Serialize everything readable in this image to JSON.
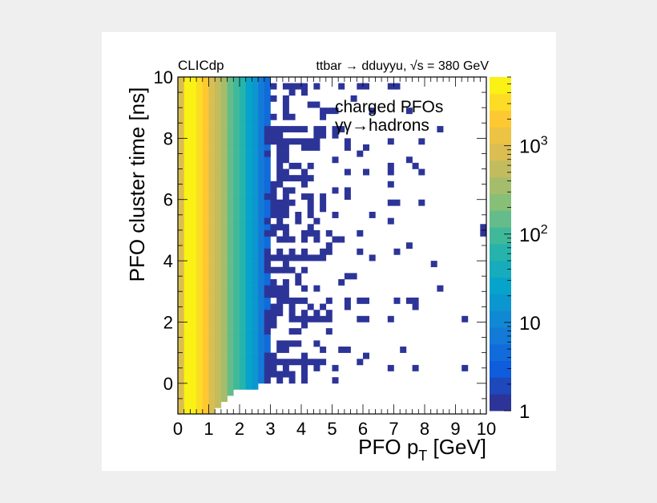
{
  "chart_data": {
    "type": "heatmap",
    "experiment_label": "CLICdp",
    "title": "ttbar → dduyyu, √s = 380 GeV",
    "legend": [
      "charged PFOs",
      "γγ→hadrons"
    ],
    "xlabel": {
      "main": "PFO p",
      "sub": "T",
      "unit": " [GeV]"
    },
    "ylabel": "PFO cluster time [ns]",
    "xlim": [
      0,
      10
    ],
    "ylim": [
      -1,
      10
    ],
    "x_bin_width": 0.2,
    "y_bin_width": 0.2,
    "x_ticks": [
      "0",
      "1",
      "2",
      "3",
      "4",
      "5",
      "6",
      "7",
      "8",
      "9",
      "10"
    ],
    "y_ticks": [
      "0",
      "2",
      "4",
      "6",
      "8",
      "10"
    ],
    "z_scale": "log",
    "zlim": [
      1,
      6000
    ],
    "z_ticks": [
      {
        "base": "1",
        "exp": ""
      },
      {
        "base": "10",
        "exp": ""
      },
      {
        "base": "10",
        "exp": "2"
      },
      {
        "base": "10",
        "exp": "3"
      }
    ],
    "palette": [
      "#352a87",
      "#0f5cdd",
      "#1481d6",
      "#06a4ca",
      "#2eb7a4",
      "#87bf77",
      "#d1bb59",
      "#fec832",
      "#f9fb0e"
    ],
    "dense_region": {
      "x_bin_low": [
        0,
        0.2,
        0.4,
        0.6,
        0.8,
        1.0,
        1.2,
        1.4,
        1.6,
        1.8,
        2.0,
        2.2,
        2.4,
        2.6,
        2.8
      ],
      "counts_per_bin": [
        800,
        5000,
        4500,
        3000,
        1800,
        900,
        500,
        300,
        170,
        100,
        55,
        30,
        15,
        8,
        4
      ],
      "min_time": [
        -1,
        -1,
        -1,
        -1,
        -1,
        -1,
        -0.8,
        -0.6,
        -0.4,
        -0.2,
        -0.2,
        -0.2,
        -0.2,
        0,
        0
      ]
    },
    "sparse_bins": [
      {
        "t": 9.6,
        "x": [
          3.0,
          3.4,
          3.6,
          3.8,
          4.0,
          4.4,
          5.2,
          5.8,
          6.0,
          6.8,
          7.0
        ]
      },
      {
        "t": 9.4,
        "x": [
          3.6,
          4.0
        ]
      },
      {
        "t": 9.2,
        "x": [
          3.0,
          3.4,
          5.6
        ]
      },
      {
        "t": 9.0,
        "x": [
          3.4,
          4.2,
          4.4
        ]
      },
      {
        "t": 8.8,
        "x": [
          3.4,
          4.6,
          4.8,
          5.0,
          6.2,
          7.4
        ]
      },
      {
        "t": 8.6,
        "x": [
          3.0,
          3.4,
          3.6,
          4.6
        ]
      },
      {
        "t": 8.2,
        "x": [
          2.8,
          3.0,
          3.2,
          3.4,
          3.6,
          3.8,
          4.0,
          4.4,
          4.6,
          5.0,
          5.2,
          8.4
        ]
      },
      {
        "t": 8.0,
        "x": [
          2.8,
          3.0,
          3.2,
          4.4,
          4.6,
          5.0
        ]
      },
      {
        "t": 7.8,
        "x": [
          2.8,
          3.0,
          3.2,
          3.4,
          3.6,
          3.8,
          4.0,
          4.2,
          4.4,
          5.4,
          6.8,
          7.8
        ]
      },
      {
        "t": 7.6,
        "x": [
          3.2,
          3.4,
          4.0,
          4.2,
          4.4,
          5.4,
          6.0
        ]
      },
      {
        "t": 7.4,
        "x": [
          2.8,
          3.2,
          3.4,
          5.8
        ]
      },
      {
        "t": 7.2,
        "x": [
          3.2,
          3.4,
          5.0,
          7.4
        ]
      },
      {
        "t": 7.0,
        "x": [
          3.2,
          3.6,
          3.8,
          4.2,
          6.8,
          7.6
        ]
      },
      {
        "t": 6.8,
        "x": [
          3.2,
          3.4,
          4.0,
          5.4,
          6.0,
          6.8,
          7.8
        ]
      },
      {
        "t": 6.6,
        "x": [
          3.2,
          3.4,
          3.6,
          3.8,
          4.0,
          4.2
        ]
      },
      {
        "t": 6.4,
        "x": [
          3.0,
          3.2,
          4.0,
          6.8
        ]
      },
      {
        "t": 6.2,
        "x": [
          3.0,
          3.4,
          3.6,
          5.0,
          5.4
        ]
      },
      {
        "t": 6.0,
        "x": [
          2.8,
          3.0,
          3.4,
          4.0,
          4.2,
          4.6,
          5.4
        ]
      },
      {
        "t": 5.8,
        "x": [
          3.0,
          3.2,
          3.4,
          3.6,
          4.2,
          4.6,
          6.8,
          7.0,
          7.8
        ]
      },
      {
        "t": 5.6,
        "x": [
          3.0,
          3.2,
          3.4,
          4.2,
          4.6
        ]
      },
      {
        "t": 5.4,
        "x": [
          3.0,
          3.2,
          3.4,
          3.8,
          4.2,
          5.0,
          6.2
        ]
      },
      {
        "t": 5.2,
        "x": [
          2.8,
          3.2,
          3.8,
          4.4,
          6.8
        ]
      },
      {
        "t": 5.0,
        "x": [
          3.0,
          3.2,
          3.4,
          4.2,
          9.8
        ]
      },
      {
        "t": 4.8,
        "x": [
          2.8,
          3.0,
          3.4,
          4.0,
          4.2,
          4.4,
          4.8,
          5.8,
          9.8
        ]
      },
      {
        "t": 4.6,
        "x": [
          3.2,
          3.4,
          3.6,
          4.0,
          4.4,
          5.0,
          5.2
        ]
      },
      {
        "t": 4.4,
        "x": [
          4.8,
          7.4
        ]
      },
      {
        "t": 4.2,
        "x": [
          2.8,
          3.2,
          3.6,
          4.0,
          4.6,
          4.8,
          5.8,
          7.0
        ]
      },
      {
        "t": 4.0,
        "x": [
          2.8,
          3.0,
          3.2,
          3.4,
          3.6,
          3.8,
          4.0,
          4.2,
          4.4,
          4.6,
          6.2
        ]
      },
      {
        "t": 3.8,
        "x": [
          2.8,
          3.4,
          8.2
        ]
      },
      {
        "t": 3.6,
        "x": [
          2.8,
          3.0,
          3.2,
          3.4,
          3.6,
          4.0
        ]
      },
      {
        "t": 3.4,
        "x": [
          3.8,
          5.4,
          5.6
        ]
      },
      {
        "t": 3.2,
        "x": [
          3.0,
          3.4,
          3.8,
          5.2
        ]
      },
      {
        "t": 3.0,
        "x": [
          2.8,
          3.0,
          3.2,
          3.4,
          4.0,
          4.4,
          8.4
        ]
      },
      {
        "t": 2.8,
        "x": [
          2.8,
          3.0,
          3.2,
          3.4
        ]
      },
      {
        "t": 2.6,
        "x": [
          3.2,
          3.4,
          3.6,
          3.8,
          4.0,
          4.8,
          5.4,
          5.8,
          6.0,
          7.0,
          7.4,
          7.6
        ]
      },
      {
        "t": 2.4,
        "x": [
          3.0,
          3.2,
          3.6,
          4.2,
          4.6,
          5.4,
          7.6
        ]
      },
      {
        "t": 2.2,
        "x": [
          2.8,
          3.0,
          3.2,
          3.6,
          4.0,
          4.4,
          4.8
        ]
      },
      {
        "t": 2.0,
        "x": [
          2.8,
          3.0,
          3.6,
          3.8,
          4.0,
          4.2,
          4.4,
          4.6,
          4.8,
          5.8,
          6.0,
          6.8,
          9.2
        ]
      },
      {
        "t": 1.8,
        "x": [
          2.8,
          3.0,
          4.0
        ]
      },
      {
        "t": 1.6,
        "x": [
          2.8,
          3.6,
          3.8,
          4.8
        ]
      },
      {
        "t": 1.2,
        "x": [
          3.2,
          3.4,
          3.6,
          3.8,
          4.4
        ]
      },
      {
        "t": 1.0,
        "x": [
          3.2,
          3.4,
          4.6,
          5.2,
          5.4,
          7.2
        ]
      },
      {
        "t": 0.8,
        "x": [
          2.8,
          3.0,
          4.0,
          6.0
        ]
      },
      {
        "t": 0.6,
        "x": [
          2.8,
          3.0,
          3.2,
          3.4,
          3.6,
          3.8,
          4.0,
          4.2,
          4.4,
          4.6,
          5.8
        ]
      },
      {
        "t": 0.4,
        "x": [
          2.8,
          3.0,
          3.4,
          4.0,
          4.4,
          5.0,
          6.8,
          7.6,
          9.2
        ]
      },
      {
        "t": 0.2,
        "x": [
          2.8,
          3.0,
          3.2,
          3.4,
          3.6,
          4.0
        ]
      },
      {
        "t": 0.0,
        "x": [
          2.8,
          3.2,
          3.6,
          4.0,
          5.0
        ]
      }
    ]
  }
}
